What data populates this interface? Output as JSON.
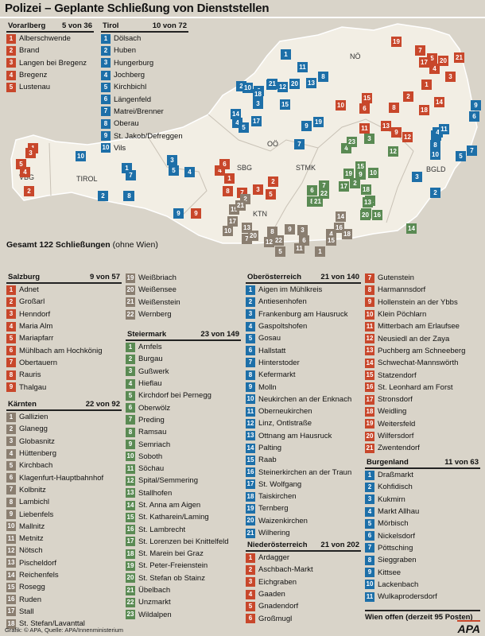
{
  "title": "Polizei – Geplante Schließung von Dienststellen",
  "total": {
    "label": "Gesamt 122 Schließungen",
    "note": "(ohne Wien)"
  },
  "wien": "Wien  offen (derzeit 95 Posten)",
  "credit": "Grafik: © APA, Quelle: APA/Innenministerium",
  "apa": "APA",
  "colors": {
    "vorarlberg_salzburg_noe": "#c8472b",
    "tirol_ooe_bgld": "#1d6fa8",
    "stmk": "#5a8a53",
    "ktn": "#8a7e70"
  },
  "region_labels": {
    "vbg": "VBG",
    "tirol": "TIROL",
    "sbg": "SBG",
    "ooe": "OÖ",
    "noe": "NÖ",
    "stmk": "STMK",
    "ktn": "KTN",
    "bgld": "BGLD"
  },
  "vorarlberg": {
    "name": "Vorarlberg",
    "count": "5 von 36",
    "items": [
      "Alberschwende",
      "Brand",
      "Langen bei Bregenz",
      "Bregenz",
      "Lustenau"
    ]
  },
  "tirol": {
    "name": "Tirol",
    "count": "10 von 72",
    "items": [
      "Dölsach",
      "Huben",
      "Hungerburg",
      "Jochberg",
      "Kirchbichl",
      "Längenfeld",
      "Matrei/Brenner",
      "Oberau",
      "St. Jakob/Defreggen",
      "Vils"
    ]
  },
  "salzburg": {
    "name": "Salzburg",
    "count": "9 von 57",
    "items": [
      "Adnet",
      "Großarl",
      "Henndorf",
      "Maria Alm",
      "Mariapfarr",
      "Mühlbach am Hochkönig",
      "Obertauern",
      "Rauris",
      "Thalgau"
    ]
  },
  "kaernten": {
    "name": "Kärnten",
    "count": "22 von 92",
    "items": [
      "Gallizien",
      "Glanegg",
      "Globasnitz",
      "Hüttenberg",
      "Kirchbach",
      "Klagenfurt-Hauptbahnhof",
      "Kolbnitz",
      "Lambichl",
      "Liebenfels",
      "Mallnitz",
      "Metnitz",
      "Nötsch",
      "Pischeldorf",
      "Reichenfels",
      "Rosegg",
      "Ruden",
      "Stall",
      "St. Stefan/Lavanttal",
      "Weißbriach",
      "Weißensee",
      "Weißenstein",
      "Wernberg"
    ]
  },
  "steiermark": {
    "name": "Steiermark",
    "count": "23 von 149",
    "items": [
      "Arnfels",
      "Burgau",
      "Gußwerk",
      "Hieflau",
      "Kirchdorf bei Pernegg",
      "Oberwölz",
      "Preding",
      "Ramsau",
      "Semriach",
      "Soboth",
      "Söchau",
      "Spital/Semmering",
      "Stallhofen",
      "St. Anna am Aigen",
      "St. Katharein/Laming",
      "St. Lambrecht",
      "St. Lorenzen bei Knittelfeld",
      "St. Marein bei Graz",
      "St. Peter-Freienstein",
      "St. Stefan ob Stainz",
      "Übelbach",
      "Unzmarkt",
      "Wildalpen"
    ]
  },
  "ooe": {
    "name": "Oberösterreich",
    "count": "21 von 140",
    "items": [
      "Aigen im Mühlkreis",
      "Antiesenhofen",
      "Frankenburg am Hausruck",
      "Gaspoltshofen",
      "Gosau",
      "Hallstatt",
      "Hinterstoder",
      "Kefermarkt",
      "Molln",
      "Neukirchen an der Enknach",
      "Oberneukirchen",
      "Linz, Ontlstraße",
      "Ottnang am Hausruck",
      "Palting",
      "Raab",
      "Steinerkirchen an der Traun",
      "St. Wolfgang",
      "Taiskirchen",
      "Ternberg",
      "Waizenkirchen",
      "Wilhering"
    ]
  },
  "noe": {
    "name": "Niederösterreich",
    "count": "21 von 202",
    "items": [
      "Ardagger",
      "Aschbach-Markt",
      "Eichgraben",
      "Gaaden",
      "Gnadendorf",
      "Großmugl",
      "Gutenstein",
      "Harmannsdorf",
      "Hollenstein an der Ybbs",
      "Klein Pöchlarn",
      "Mitterbach am Erlaufsee",
      "Neusiedl an der Zaya",
      "Puchberg am Schneeberg",
      "Schwechat-Mannswörth",
      "Statzendorf",
      "St. Leonhard am Forst",
      "Stronsdorf",
      "Weidling",
      "Weitersfeld",
      "Wilfersdorf",
      "Zwentendorf"
    ]
  },
  "burgenland": {
    "name": "Burgenland",
    "count": "11 von 63",
    "items": [
      "Draßmarkt",
      "Kohfidisch",
      "Kukmirn",
      "Markt Allhau",
      "Mörbisch",
      "Nickelsdorf",
      "Pöttsching",
      "Sieggraben",
      "Kittsee",
      "Lackenbach",
      "Wulkaprodersdorf"
    ]
  }
}
